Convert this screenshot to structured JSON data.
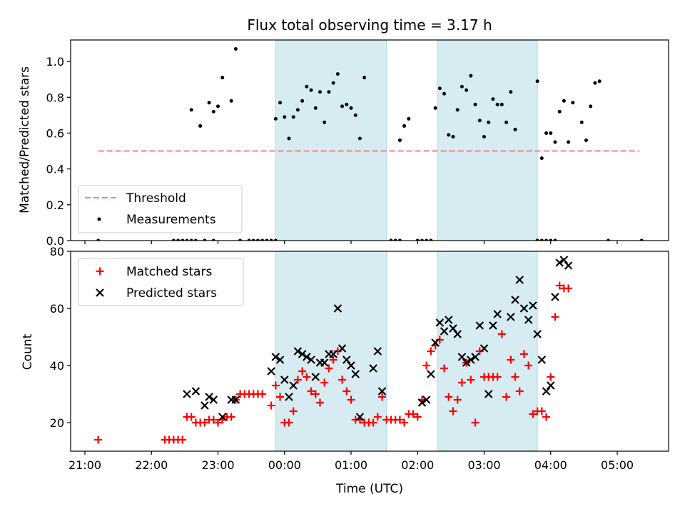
{
  "chart_data": [
    {
      "type": "scatter",
      "title": "Flux total observing time = 3.17 h",
      "xlabel": "",
      "ylabel": "Matched/Predicted stars",
      "xlim": [
        "21:00",
        "05:50"
      ],
      "ylim": [
        0,
        1.12
      ],
      "yticks": [
        "0.0",
        "0.2",
        "0.4",
        "0.6",
        "0.8",
        "1.0"
      ],
      "yticks_values": [
        0,
        0.2,
        0.4,
        0.6,
        0.8,
        1.0
      ],
      "shaded_intervals": [
        [
          "23:52",
          "01:32"
        ],
        [
          "02:18",
          "03:48"
        ]
      ],
      "threshold": {
        "name": "Threshold",
        "value": 0.5,
        "x_range": [
          "21:12",
          "05:20"
        ],
        "color": "#ff7f7f"
      },
      "series": [
        {
          "name": "Measurements",
          "marker": "dot",
          "color": "#000000",
          "points": [
            [
              "21:12",
              0
            ],
            [
              "22:20",
              0
            ],
            [
              "22:24",
              0
            ],
            [
              "22:28",
              0
            ],
            [
              "22:32",
              0
            ],
            [
              "22:36",
              0
            ],
            [
              "22:40",
              0
            ],
            [
              "22:48",
              0
            ],
            [
              "22:56",
              0
            ],
            [
              "23:20",
              0
            ],
            [
              "23:28",
              0
            ],
            [
              "23:32",
              0
            ],
            [
              "23:36",
              0
            ],
            [
              "23:40",
              0
            ],
            [
              "23:44",
              0
            ],
            [
              "23:48",
              0
            ],
            [
              "23:52",
              0
            ],
            [
              "01:36",
              0
            ],
            [
              "01:40",
              0
            ],
            [
              "01:44",
              0
            ],
            [
              "02:00",
              0
            ],
            [
              "02:04",
              0
            ],
            [
              "02:08",
              0
            ],
            [
              "02:12",
              0
            ],
            [
              "03:48",
              0
            ],
            [
              "03:52",
              0
            ],
            [
              "03:56",
              0
            ],
            [
              "04:00",
              0
            ],
            [
              "04:04",
              0
            ],
            [
              "04:52",
              0
            ],
            [
              "05:22",
              0
            ],
            [
              "22:36",
              0.73
            ],
            [
              "22:44",
              0.64
            ],
            [
              "22:52",
              0.77
            ],
            [
              "22:56",
              0.72
            ],
            [
              "23:00",
              0.75
            ],
            [
              "23:04",
              0.91
            ],
            [
              "23:12",
              0.78
            ],
            [
              "23:16",
              1.07
            ],
            [
              "23:52",
              0.68
            ],
            [
              "23:56",
              0.77
            ],
            [
              "00:00",
              0.69
            ],
            [
              "00:04",
              0.57
            ],
            [
              "00:08",
              0.69
            ],
            [
              "00:12",
              0.73
            ],
            [
              "00:16",
              0.78
            ],
            [
              "00:20",
              0.86
            ],
            [
              "00:24",
              0.84
            ],
            [
              "00:28",
              0.74
            ],
            [
              "00:32",
              0.83
            ],
            [
              "00:36",
              0.66
            ],
            [
              "00:40",
              0.83
            ],
            [
              "00:44",
              0.88
            ],
            [
              "00:48",
              0.93
            ],
            [
              "00:52",
              0.75
            ],
            [
              "00:56",
              0.76
            ],
            [
              "01:00",
              0.74
            ],
            [
              "01:04",
              0.7
            ],
            [
              "01:08",
              0.57
            ],
            [
              "01:12",
              0.91
            ],
            [
              "01:44",
              0.56
            ],
            [
              "01:48",
              0.64
            ],
            [
              "01:52",
              0.68
            ],
            [
              "02:16",
              0.74
            ],
            [
              "02:20",
              0.85
            ],
            [
              "02:24",
              0.82
            ],
            [
              "02:28",
              0.59
            ],
            [
              "02:32",
              0.58
            ],
            [
              "02:36",
              0.73
            ],
            [
              "02:40",
              0.86
            ],
            [
              "02:44",
              0.84
            ],
            [
              "02:48",
              0.92
            ],
            [
              "02:52",
              0.76
            ],
            [
              "02:56",
              0.67
            ],
            [
              "03:00",
              0.58
            ],
            [
              "03:04",
              0.66
            ],
            [
              "03:08",
              0.79
            ],
            [
              "03:12",
              0.76
            ],
            [
              "03:16",
              0.76
            ],
            [
              "03:20",
              0.66
            ],
            [
              "03:24",
              0.83
            ],
            [
              "03:28",
              0.62
            ],
            [
              "03:48",
              0.89
            ],
            [
              "03:52",
              0.46
            ],
            [
              "03:56",
              0.6
            ],
            [
              "04:00",
              0.6
            ],
            [
              "04:04",
              0.55
            ],
            [
              "04:08",
              0.72
            ],
            [
              "04:12",
              0.78
            ],
            [
              "04:16",
              0.55
            ],
            [
              "04:20",
              0.77
            ],
            [
              "04:28",
              0.66
            ],
            [
              "04:32",
              0.56
            ],
            [
              "04:36",
              0.75
            ],
            [
              "04:40",
              0.88
            ],
            [
              "04:44",
              0.89
            ]
          ]
        }
      ],
      "legend": {
        "placement": "lower left",
        "entries": [
          "Threshold",
          "Measurements"
        ]
      }
    },
    {
      "type": "scatter",
      "title": "",
      "xlabel": "Time (UTC)",
      "ylabel": "Count",
      "xlim": [
        "21:00",
        "05:50"
      ],
      "ylim": [
        10,
        80
      ],
      "yticks": [
        "20",
        "40",
        "60",
        "80"
      ],
      "yticks_values": [
        20,
        40,
        60,
        80
      ],
      "xticks": [
        "21:00",
        "22:00",
        "23:00",
        "00:00",
        "01:00",
        "02:00",
        "03:00",
        "04:00",
        "05:00"
      ],
      "shaded_intervals": [
        [
          "23:52",
          "01:32"
        ],
        [
          "02:18",
          "03:48"
        ]
      ],
      "series": [
        {
          "name": "Matched stars",
          "marker": "plus",
          "color": "#ff0000",
          "points": [
            [
              "21:12",
              14
            ],
            [
              "22:12",
              14
            ],
            [
              "22:16",
              14
            ],
            [
              "22:20",
              14
            ],
            [
              "22:24",
              14
            ],
            [
              "22:28",
              14
            ],
            [
              "22:32",
              22
            ],
            [
              "22:36",
              22
            ],
            [
              "22:40",
              20
            ],
            [
              "22:44",
              20
            ],
            [
              "22:48",
              20
            ],
            [
              "22:52",
              21
            ],
            [
              "22:56",
              21
            ],
            [
              "23:00",
              20
            ],
            [
              "23:04",
              21
            ],
            [
              "23:08",
              22
            ],
            [
              "23:12",
              22
            ],
            [
              "23:16",
              28
            ],
            [
              "23:20",
              30
            ],
            [
              "23:24",
              30
            ],
            [
              "23:28",
              30
            ],
            [
              "23:32",
              30
            ],
            [
              "23:36",
              30
            ],
            [
              "23:40",
              30
            ],
            [
              "23:48",
              26
            ],
            [
              "23:52",
              33
            ],
            [
              "23:56",
              29
            ],
            [
              "00:00",
              20
            ],
            [
              "00:04",
              20
            ],
            [
              "00:08",
              24
            ],
            [
              "00:12",
              35
            ],
            [
              "00:16",
              38
            ],
            [
              "00:20",
              36
            ],
            [
              "00:24",
              31
            ],
            [
              "00:28",
              30
            ],
            [
              "00:32",
              27
            ],
            [
              "00:36",
              34
            ],
            [
              "00:40",
              39
            ],
            [
              "00:44",
              42
            ],
            [
              "00:48",
              45
            ],
            [
              "00:52",
              35
            ],
            [
              "00:56",
              31
            ],
            [
              "01:00",
              28
            ],
            [
              "01:04",
              21
            ],
            [
              "01:08",
              21
            ],
            [
              "01:12",
              20
            ],
            [
              "01:16",
              20
            ],
            [
              "01:20",
              20
            ],
            [
              "01:24",
              22
            ],
            [
              "01:28",
              29
            ],
            [
              "01:32",
              21
            ],
            [
              "01:36",
              21
            ],
            [
              "01:40",
              21
            ],
            [
              "01:44",
              21
            ],
            [
              "01:48",
              20
            ],
            [
              "01:52",
              23
            ],
            [
              "01:56",
              23
            ],
            [
              "02:00",
              22
            ],
            [
              "02:04",
              28
            ],
            [
              "02:08",
              40
            ],
            [
              "02:12",
              45
            ],
            [
              "02:16",
              47
            ],
            [
              "02:20",
              49
            ],
            [
              "02:24",
              39
            ],
            [
              "02:28",
              29
            ],
            [
              "02:32",
              24
            ],
            [
              "02:36",
              28
            ],
            [
              "02:40",
              34
            ],
            [
              "02:44",
              41
            ],
            [
              "02:48",
              35
            ],
            [
              "02:52",
              20
            ],
            [
              "02:56",
              45
            ],
            [
              "03:00",
              36
            ],
            [
              "03:04",
              36
            ],
            [
              "03:08",
              36
            ],
            [
              "03:12",
              36
            ],
            [
              "03:16",
              51
            ],
            [
              "03:20",
              29
            ],
            [
              "03:24",
              42
            ],
            [
              "03:28",
              36
            ],
            [
              "03:32",
              31
            ],
            [
              "03:36",
              44
            ],
            [
              "03:40",
              40
            ],
            [
              "03:44",
              23
            ],
            [
              "03:48",
              24
            ],
            [
              "03:52",
              24
            ],
            [
              "03:56",
              22
            ],
            [
              "04:00",
              36
            ],
            [
              "04:04",
              57
            ],
            [
              "04:08",
              68
            ],
            [
              "04:12",
              67
            ],
            [
              "04:16",
              67
            ]
          ]
        },
        {
          "name": "Predicted stars",
          "marker": "x",
          "color": "#000000",
          "points": [
            [
              "22:32",
              30
            ],
            [
              "22:40",
              31
            ],
            [
              "22:48",
              26
            ],
            [
              "22:52",
              29
            ],
            [
              "22:56",
              28
            ],
            [
              "23:04",
              22
            ],
            [
              "23:12",
              28
            ],
            [
              "23:16",
              28
            ],
            [
              "23:48",
              38
            ],
            [
              "23:52",
              43
            ],
            [
              "23:56",
              42
            ],
            [
              "00:00",
              35
            ],
            [
              "00:04",
              29
            ],
            [
              "00:08",
              33
            ],
            [
              "00:12",
              45
            ],
            [
              "00:16",
              44
            ],
            [
              "00:20",
              43
            ],
            [
              "00:24",
              42
            ],
            [
              "00:28",
              36
            ],
            [
              "00:32",
              41
            ],
            [
              "00:36",
              41
            ],
            [
              "00:40",
              44
            ],
            [
              "00:44",
              44
            ],
            [
              "00:48",
              60
            ],
            [
              "00:52",
              46
            ],
            [
              "00:56",
              42
            ],
            [
              "01:00",
              40
            ],
            [
              "01:04",
              37
            ],
            [
              "01:08",
              22
            ],
            [
              "01:20",
              39
            ],
            [
              "01:24",
              45
            ],
            [
              "01:28",
              31
            ],
            [
              "02:04",
              27
            ],
            [
              "02:08",
              28
            ],
            [
              "02:12",
              37
            ],
            [
              "02:16",
              48
            ],
            [
              "02:20",
              55
            ],
            [
              "02:24",
              52
            ],
            [
              "02:28",
              56
            ],
            [
              "02:32",
              53
            ],
            [
              "02:36",
              51
            ],
            [
              "02:40",
              43
            ],
            [
              "02:44",
              41
            ],
            [
              "02:48",
              42
            ],
            [
              "02:52",
              43
            ],
            [
              "02:56",
              54
            ],
            [
              "03:00",
              46
            ],
            [
              "03:04",
              30
            ],
            [
              "03:08",
              54
            ],
            [
              "03:12",
              58
            ],
            [
              "03:24",
              57
            ],
            [
              "03:28",
              63
            ],
            [
              "03:32",
              70
            ],
            [
              "03:36",
              60
            ],
            [
              "03:40",
              56
            ],
            [
              "03:44",
              61
            ],
            [
              "03:48",
              51
            ],
            [
              "03:52",
              42
            ],
            [
              "03:56",
              31
            ],
            [
              "04:00",
              33
            ],
            [
              "04:04",
              64
            ],
            [
              "04:08",
              76
            ],
            [
              "04:12",
              77
            ],
            [
              "04:16",
              75
            ]
          ]
        }
      ],
      "legend": {
        "placement": "upper left",
        "entries": [
          "Matched stars",
          "Predicted stars"
        ]
      }
    }
  ]
}
